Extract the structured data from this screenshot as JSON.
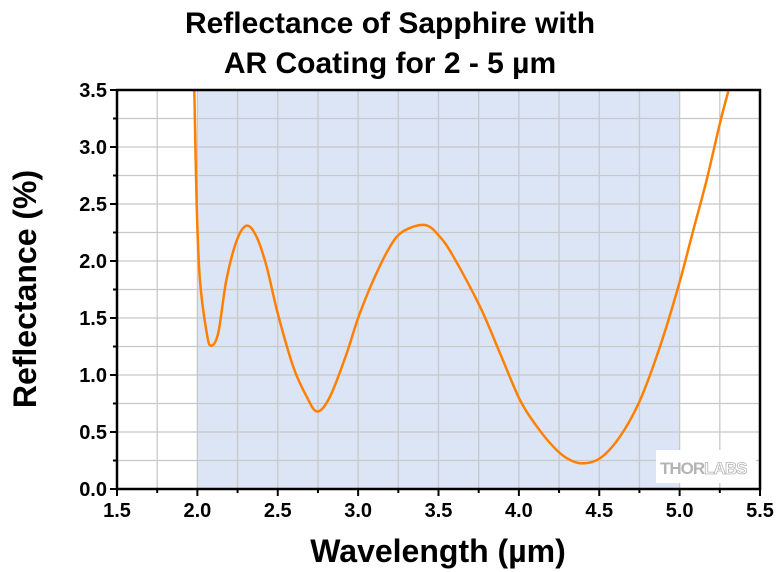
{
  "chart_data": {
    "type": "line",
    "title": "Reflectance of Sapphire with AR Coating for 2 - 5 µm",
    "title_lines": [
      "Reflectance of Sapphire with",
      "AR Coating for 2 - 5 µm"
    ],
    "xlabel": "Wavelength (µm)",
    "ylabel": "Reflectance (%)",
    "xlim": [
      1.5,
      5.5
    ],
    "ylim": [
      0.0,
      3.5
    ],
    "xticks": [
      "1.5",
      "2.0",
      "2.5",
      "3.0",
      "3.5",
      "4.0",
      "4.5",
      "5.0",
      "5.5"
    ],
    "yticks": [
      "0.0",
      "0.5",
      "1.0",
      "1.5",
      "2.0",
      "2.5",
      "3.0",
      "3.5"
    ],
    "grid": true,
    "shaded_band": {
      "x": [
        2.0,
        5.0
      ],
      "color": "#dce5f5"
    },
    "watermark": "THORLABS",
    "series": [
      {
        "color": "#ff8000",
        "x": [
          1.981,
          1.996,
          2.016,
          2.058,
          2.085,
          2.13,
          2.18,
          2.245,
          2.307,
          2.369,
          2.431,
          2.5,
          2.597,
          2.68,
          2.746,
          2.825,
          2.929,
          3.0,
          3.094,
          3.198,
          3.28,
          3.416,
          3.51,
          3.592,
          3.758,
          3.883,
          4.007,
          4.111,
          4.215,
          4.298,
          4.39,
          4.505,
          4.629,
          4.754,
          4.878,
          4.992,
          5.085,
          5.168,
          5.251,
          5.303
        ],
        "y": [
          3.5,
          2.476,
          1.83,
          1.37,
          1.257,
          1.37,
          1.83,
          2.18,
          2.31,
          2.21,
          1.95,
          1.54,
          1.07,
          0.81,
          0.68,
          0.81,
          1.19,
          1.5,
          1.83,
          2.125,
          2.26,
          2.316,
          2.21,
          2.04,
          1.6,
          1.19,
          0.78,
          0.55,
          0.37,
          0.27,
          0.225,
          0.27,
          0.46,
          0.78,
          1.25,
          1.775,
          2.27,
          2.71,
          3.21,
          3.49
        ]
      }
    ]
  }
}
